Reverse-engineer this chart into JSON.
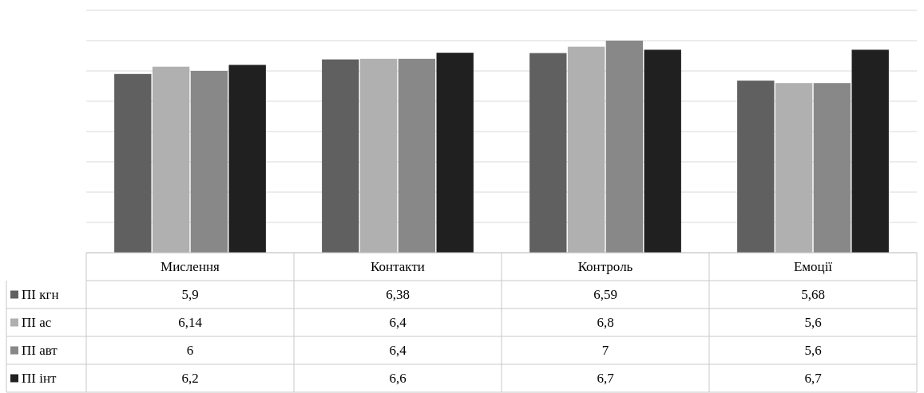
{
  "chart_data": {
    "type": "bar",
    "categories": [
      "Мислення",
      "Контакти",
      "Контроль",
      "Емоції"
    ],
    "series": [
      {
        "name": "ПІ кгн",
        "color": "#606060",
        "values": [
          5.9,
          6.38,
          6.59,
          5.68
        ],
        "value_labels": [
          "5,9",
          "6,38",
          "6,59",
          "5,68"
        ]
      },
      {
        "name": "ПІ ас",
        "color": "#b0b0b0",
        "values": [
          6.14,
          6.4,
          6.8,
          5.6
        ],
        "value_labels": [
          "6,14",
          "6,4",
          "6,8",
          "5,6"
        ]
      },
      {
        "name": "ПІ авт",
        "color": "#888888",
        "values": [
          6,
          6.4,
          7,
          5.6
        ],
        "value_labels": [
          "6",
          "6,4",
          "7",
          "5,6"
        ]
      },
      {
        "name": "ПІ інт",
        "color": "#202020",
        "values": [
          6.2,
          6.6,
          6.7,
          6.7
        ],
        "value_labels": [
          "6,2",
          "6,6",
          "6,7",
          "6,7"
        ]
      }
    ],
    "ylim": [
      0,
      8
    ],
    "yticks": [
      {
        "value": 0,
        "label": null
      },
      {
        "value": 1,
        "label": null
      },
      {
        "value": 2,
        "label": null
      },
      {
        "value": 3,
        "label": null
      },
      {
        "value": 4,
        "label": null
      },
      {
        "value": 5,
        "label": null
      },
      {
        "value": 6,
        "label": null
      },
      {
        "value": 7,
        "label": null
      },
      {
        "value": 8,
        "label": null
      }
    ],
    "grid": "y",
    "legend": "bottom",
    "tick_labels": "x"
  }
}
